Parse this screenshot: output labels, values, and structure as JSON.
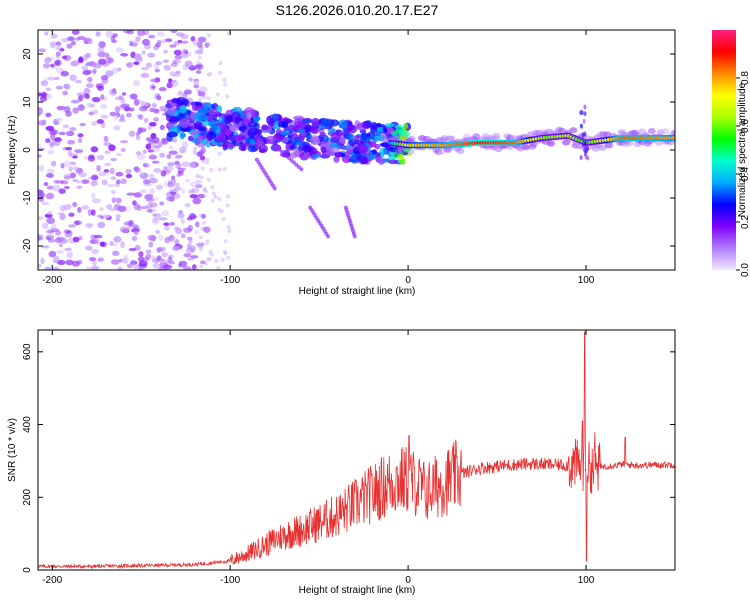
{
  "title": "S126.2026.010.20.17.E27",
  "chart_data": [
    {
      "type": "heatmap",
      "name": "spectrogram",
      "xlabel": "Height of straight line (km)",
      "ylabel": "Frequency (Hz)",
      "xlim": [
        -208,
        150
      ],
      "ylim": [
        -25,
        25
      ],
      "xticks": [
        -200,
        -100,
        0,
        100
      ],
      "yticks": [
        -20,
        -10,
        0,
        10,
        20
      ],
      "colorbar": {
        "label": "Normalized spectral amplitude",
        "range": [
          0,
          1
        ],
        "ticks": [
          "0.0",
          "0.2",
          "0.4",
          "0.6",
          "0.8"
        ],
        "tick_values": [
          0.0,
          0.2,
          0.4,
          0.6,
          0.8
        ],
        "colormap": [
          "#f0e6ff",
          "#b07cff",
          "#8000ff",
          "#0000ff",
          "#00aaff",
          "#00ffcc",
          "#00ff00",
          "#aaff00",
          "#ffff00",
          "#ff8800",
          "#ff0000",
          "#ff2080"
        ]
      },
      "ridge": [
        {
          "x": -130,
          "f": 6.5,
          "a": 0.35
        },
        {
          "x": -115,
          "f": 5.5,
          "a": 0.35
        },
        {
          "x": -100,
          "f": 4.5,
          "a": 0.3
        },
        {
          "x": -85,
          "f": 4.0,
          "a": 0.3
        },
        {
          "x": -70,
          "f": 3.0,
          "a": 0.3
        },
        {
          "x": -55,
          "f": 2.5,
          "a": 0.3
        },
        {
          "x": -40,
          "f": 2.0,
          "a": 0.3
        },
        {
          "x": -25,
          "f": 1.5,
          "a": 0.3
        },
        {
          "x": -10,
          "f": 1.5,
          "a": 0.35
        },
        {
          "x": 0,
          "f": 1.0,
          "a": 0.75
        },
        {
          "x": 20,
          "f": 1.0,
          "a": 0.8
        },
        {
          "x": 40,
          "f": 1.5,
          "a": 0.9
        },
        {
          "x": 60,
          "f": 1.5,
          "a": 0.85
        },
        {
          "x": 75,
          "f": 2.5,
          "a": 0.6
        },
        {
          "x": 90,
          "f": 3.0,
          "a": 0.65
        },
        {
          "x": 100,
          "f": 1.5,
          "a": 0.55
        },
        {
          "x": 120,
          "f": 2.5,
          "a": 0.85
        },
        {
          "x": 150,
          "f": 2.5,
          "a": 0.8
        }
      ],
      "line_color": "#ff3300"
    },
    {
      "type": "line",
      "name": "snr",
      "xlabel": "Height of straight line (km)",
      "ylabel": "SNR (10 * v/v)",
      "xlim": [
        -208,
        150
      ],
      "ylim": [
        0,
        660
      ],
      "xticks": [
        -200,
        -100,
        0,
        100
      ],
      "yticks": [
        0,
        200,
        400,
        600
      ],
      "color": "#e83030",
      "series": [
        {
          "name": "SNR",
          "x": [
            -208,
            -180,
            -150,
            -120,
            -100,
            -90,
            -80,
            -70,
            -60,
            -50,
            -40,
            -30,
            -20,
            -10,
            0,
            5,
            10,
            20,
            30,
            40,
            50,
            60,
            70,
            80,
            90,
            95,
            100,
            105,
            110,
            120,
            130,
            150
          ],
          "y": [
            10,
            10,
            12,
            15,
            25,
            45,
            70,
            95,
            110,
            130,
            150,
            180,
            210,
            240,
            250,
            235,
            215,
            240,
            265,
            280,
            285,
            290,
            292,
            290,
            288,
            290,
            285,
            280,
            285,
            290,
            288,
            290
          ]
        }
      ],
      "spikes": [
        {
          "x": 0.5,
          "y": 370
        },
        {
          "x": 98,
          "y": 410
        },
        {
          "x": 99.3,
          "y": 655
        },
        {
          "x": 100.2,
          "y": 25
        },
        {
          "x": 105,
          "y": 380
        },
        {
          "x": 122,
          "y": 365
        }
      ]
    }
  ]
}
